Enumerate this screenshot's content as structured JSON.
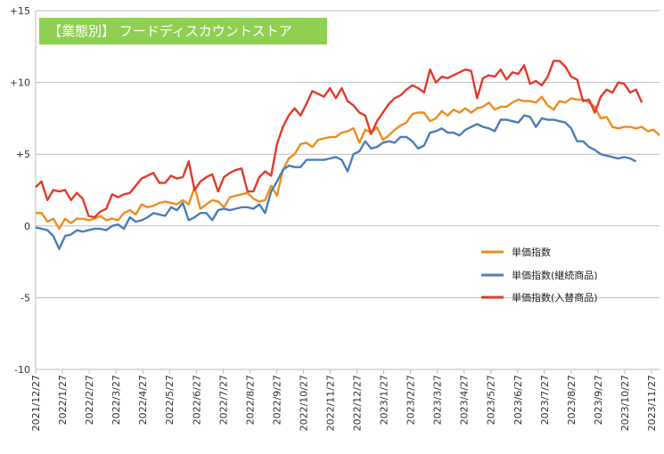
{
  "chart_data": {
    "type": "line",
    "title": "【業態別】 フードディスカウントストア",
    "xlabel": "",
    "ylabel": "",
    "ylim": [
      -10,
      15
    ],
    "y_ticks": [
      "+15",
      "+10",
      "+5",
      "0",
      "-5",
      "-10"
    ],
    "y_tick_values": [
      15,
      10,
      5,
      0,
      -5,
      -10
    ],
    "x_ticks": [
      "2021/12/27",
      "2022/1/27",
      "2022/2/27",
      "2022/3/27",
      "2022/4/27",
      "2022/5/27",
      "2022/6/27",
      "2022/7/27",
      "2022/8/27",
      "2022/9/27",
      "2022/10/27",
      "2022/11/27",
      "2022/12/27",
      "2023/1/27",
      "2023/2/27",
      "2023/3/27",
      "2023/4/27",
      "2023/5/27",
      "2023/6/27",
      "2023/7/27",
      "2023/8/27",
      "2023/9/27",
      "2023/10/27",
      "2023/11/27"
    ],
    "grid": "horizontal",
    "legend_position": "right",
    "series": [
      {
        "name": "単価指数",
        "color": "#f08c1e",
        "values": [
          0.9,
          0.9,
          0.3,
          0.5,
          -0.2,
          0.5,
          0.2,
          0.5,
          0.5,
          0.4,
          0.5,
          0.7,
          0.4,
          0.5,
          0.4,
          0.9,
          1.1,
          0.8,
          1.5,
          1.3,
          1.4,
          1.6,
          1.7,
          1.6,
          1.5,
          1.8,
          1.5,
          2.7,
          1.2,
          1.5,
          1.8,
          1.7,
          1.3,
          2.0,
          2.1,
          2.2,
          2.3,
          1.9,
          1.7,
          1.8,
          2.8,
          2.1,
          3.9,
          4.7,
          5.0,
          5.7,
          5.8,
          5.5,
          6.0,
          6.1,
          6.2,
          6.2,
          6.5,
          6.6,
          6.8,
          5.8,
          6.7,
          6.5,
          6.9,
          6.0,
          6.3,
          6.7,
          7.0,
          7.2,
          7.8,
          7.9,
          7.9,
          7.3,
          7.5,
          8.0,
          7.7,
          8.1,
          7.9,
          8.2,
          7.9,
          8.2,
          8.3,
          8.6,
          8.1,
          8.3,
          8.3,
          8.6,
          8.8,
          8.7,
          8.7,
          8.6,
          9.0,
          8.4,
          8.1,
          8.7,
          8.6,
          8.9,
          8.8,
          8.8,
          8.6,
          8.3,
          7.5,
          7.6,
          6.9,
          6.8,
          6.9,
          6.9,
          6.8,
          6.9,
          6.6,
          6.7,
          6.3
        ]
      },
      {
        "name": "単価指数(継続商品)",
        "color": "#4a7ebb",
        "values": [
          -0.1,
          -0.2,
          -0.3,
          -0.7,
          -1.6,
          -0.7,
          -0.6,
          -0.3,
          -0.4,
          -0.3,
          -0.2,
          -0.2,
          -0.3,
          0.0,
          0.1,
          -0.2,
          0.6,
          0.3,
          0.4,
          0.6,
          0.9,
          0.8,
          0.7,
          1.3,
          1.1,
          1.6,
          0.4,
          0.6,
          0.9,
          0.9,
          0.4,
          1.1,
          1.2,
          1.1,
          1.2,
          1.3,
          1.3,
          1.2,
          1.5,
          0.9,
          2.4,
          3.1,
          3.9,
          4.2,
          4.1,
          4.1,
          4.6,
          4.6,
          4.6,
          4.6,
          4.7,
          4.8,
          4.6,
          3.8,
          5.0,
          5.2,
          5.9,
          5.4,
          5.5,
          5.8,
          5.9,
          5.8,
          6.2,
          6.2,
          5.9,
          5.4,
          5.6,
          6.5,
          6.6,
          6.8,
          6.5,
          6.5,
          6.3,
          6.7,
          6.9,
          7.1,
          6.9,
          6.8,
          6.6,
          7.4,
          7.4,
          7.3,
          7.2,
          7.7,
          7.6,
          6.9,
          7.5,
          7.4,
          7.4,
          7.3,
          7.2,
          6.8,
          5.9,
          5.9,
          5.5,
          5.3,
          5.0,
          4.9,
          4.8,
          4.7,
          4.8,
          4.7,
          4.5
        ]
      },
      {
        "name": "単価指数(入替商品)",
        "color": "#e23a2c",
        "values": [
          2.7,
          3.1,
          1.8,
          2.5,
          2.4,
          2.5,
          1.8,
          2.3,
          1.9,
          0.7,
          0.6,
          1.0,
          1.2,
          2.2,
          2.0,
          2.2,
          2.3,
          2.8,
          3.3,
          3.5,
          3.7,
          3.0,
          3.0,
          3.5,
          3.3,
          3.4,
          4.5,
          2.5,
          3.1,
          3.4,
          3.6,
          2.4,
          3.4,
          3.7,
          3.9,
          4.0,
          2.4,
          2.4,
          3.4,
          3.8,
          3.5,
          5.7,
          6.9,
          7.7,
          8.2,
          7.7,
          8.5,
          9.4,
          9.2,
          9.0,
          9.6,
          8.9,
          9.6,
          8.7,
          8.4,
          7.9,
          7.7,
          6.4,
          7.3,
          7.9,
          8.5,
          8.9,
          9.1,
          9.5,
          9.8,
          9.6,
          9.3,
          10.9,
          10.0,
          10.4,
          10.3,
          10.5,
          10.7,
          10.9,
          10.8,
          8.9,
          10.3,
          10.5,
          10.4,
          10.9,
          10.2,
          10.7,
          10.6,
          11.2,
          9.9,
          10.1,
          9.8,
          10.4,
          11.5,
          11.5,
          11.1,
          10.4,
          10.2,
          8.7,
          8.8,
          7.9,
          9.0,
          9.5,
          9.3,
          10.0,
          9.9,
          9.3,
          9.5,
          8.6
        ]
      }
    ]
  }
}
